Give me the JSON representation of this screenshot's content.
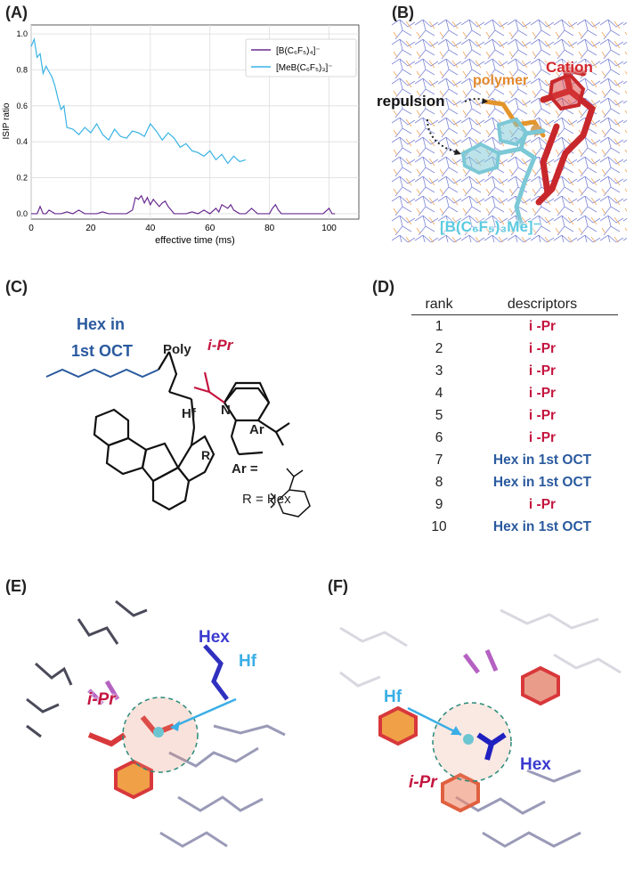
{
  "panels": {
    "a": "(A)",
    "b": "(B)",
    "c": "(C)",
    "d": "(D)",
    "e": "(E)",
    "f": "(F)"
  },
  "chart_data": {
    "type": "line",
    "title": "",
    "xlabel": "effective time (ms)",
    "ylabel": "ISIP ratio",
    "xlim": [
      0,
      110
    ],
    "ylim": [
      -0.03,
      1.05
    ],
    "xticks": [
      "0",
      "20",
      "40",
      "60",
      "80",
      "100"
    ],
    "yticks": [
      "0.0",
      "0.2",
      "0.4",
      "0.6",
      "0.8",
      "1.0"
    ],
    "grid": true,
    "legend_position": "top-right",
    "series": [
      {
        "name": "[B(C₆F₅)₄]⁻",
        "color": "#6a2c91",
        "x": [
          0,
          2,
          3,
          4,
          5,
          6,
          8,
          10,
          12,
          14,
          16,
          18,
          20,
          22,
          24,
          26,
          28,
          30,
          32,
          34,
          35,
          36,
          37,
          38,
          39,
          40,
          41,
          42,
          43,
          44,
          45,
          46,
          47,
          48,
          50,
          52,
          54,
          56,
          58,
          60,
          62,
          63,
          64,
          65,
          66,
          67,
          68,
          70,
          72,
          74,
          76,
          78,
          80,
          81,
          82,
          83,
          84,
          86,
          88,
          90,
          92,
          94,
          96,
          98,
          100,
          101,
          102
        ],
        "values": [
          0,
          0,
          0.04,
          0,
          0,
          0.02,
          0,
          0,
          0.01,
          0,
          0.02,
          0,
          0,
          0,
          0.01,
          0,
          0,
          0,
          0,
          0.02,
          0.09,
          0.08,
          0.1,
          0.06,
          0.09,
          0.05,
          0.08,
          0.06,
          0.04,
          0.06,
          0.07,
          0.04,
          0.02,
          0,
          0,
          0,
          0.01,
          0,
          0.02,
          0,
          0.03,
          0.01,
          0.05,
          0.04,
          0.03,
          0.05,
          0.02,
          0,
          0,
          0.03,
          0,
          0,
          0,
          0.03,
          0.05,
          0.02,
          0,
          0,
          0,
          0,
          0,
          0,
          0,
          0,
          0.03,
          0,
          0
        ]
      },
      {
        "name": "[MeB(C₆F₅)₃]⁻",
        "color": "#39b3e5",
        "x": [
          0,
          1,
          2,
          3,
          4,
          5,
          6,
          7,
          8,
          9,
          10,
          11,
          12,
          14,
          16,
          18,
          20,
          22,
          24,
          26,
          28,
          30,
          32,
          34,
          36,
          38,
          40,
          42,
          44,
          46,
          48,
          50,
          52,
          54,
          56,
          58,
          60,
          62,
          64,
          66,
          68,
          70,
          72
        ],
        "values": [
          0.93,
          0.97,
          0.87,
          0.89,
          0.78,
          0.82,
          0.79,
          0.76,
          0.71,
          0.64,
          0.58,
          0.6,
          0.48,
          0.47,
          0.44,
          0.48,
          0.45,
          0.5,
          0.44,
          0.41,
          0.47,
          0.43,
          0.42,
          0.46,
          0.45,
          0.43,
          0.5,
          0.46,
          0.41,
          0.45,
          0.42,
          0.37,
          0.39,
          0.35,
          0.34,
          0.32,
          0.35,
          0.3,
          0.33,
          0.28,
          0.32,
          0.29,
          0.3
        ]
      }
    ]
  },
  "panel_b": {
    "cation": "Cation",
    "polymer": "polymer",
    "repulsion": "repulsion",
    "anion": "[B(C₆F₅)₃Me]⁻"
  },
  "panel_c": {
    "hex_label_line1": "Hex in",
    "hex_label_line2": "1st OCT",
    "ipr": "i-Pr",
    "poly": "Poly",
    "hf": "Hf",
    "n": "N",
    "r": "R",
    "ar": "Ar",
    "ar_def": "Ar =",
    "r_def": "R = Hex"
  },
  "panel_d": {
    "col_rank": "rank",
    "col_descriptors": "descriptors",
    "rows": [
      {
        "rank": "1",
        "descriptor": "i -Pr",
        "kind": "ipr"
      },
      {
        "rank": "2",
        "descriptor": "i -Pr",
        "kind": "ipr"
      },
      {
        "rank": "3",
        "descriptor": "i -Pr",
        "kind": "ipr"
      },
      {
        "rank": "4",
        "descriptor": "i -Pr",
        "kind": "ipr"
      },
      {
        "rank": "5",
        "descriptor": "i -Pr",
        "kind": "ipr"
      },
      {
        "rank": "6",
        "descriptor": "i -Pr",
        "kind": "ipr"
      },
      {
        "rank": "7",
        "descriptor": "Hex in 1st OCT",
        "kind": "hex"
      },
      {
        "rank": "8",
        "descriptor": "Hex in 1st OCT",
        "kind": "hex"
      },
      {
        "rank": "9",
        "descriptor": "i -Pr",
        "kind": "ipr"
      },
      {
        "rank": "10",
        "descriptor": "Hex in 1st OCT",
        "kind": "hex"
      }
    ]
  },
  "panel_e": {
    "hex": "Hex",
    "hf": "Hf",
    "ipr": "i-Pr"
  },
  "panel_f": {
    "hex": "Hex",
    "hf": "Hf",
    "ipr": "i-Pr"
  },
  "colors": {
    "ipr_red": "#c4163f",
    "hex_blue": "#2a5a9e",
    "hf_cyan": "#3aaee6",
    "hex_violet": "#3b3bd0"
  }
}
